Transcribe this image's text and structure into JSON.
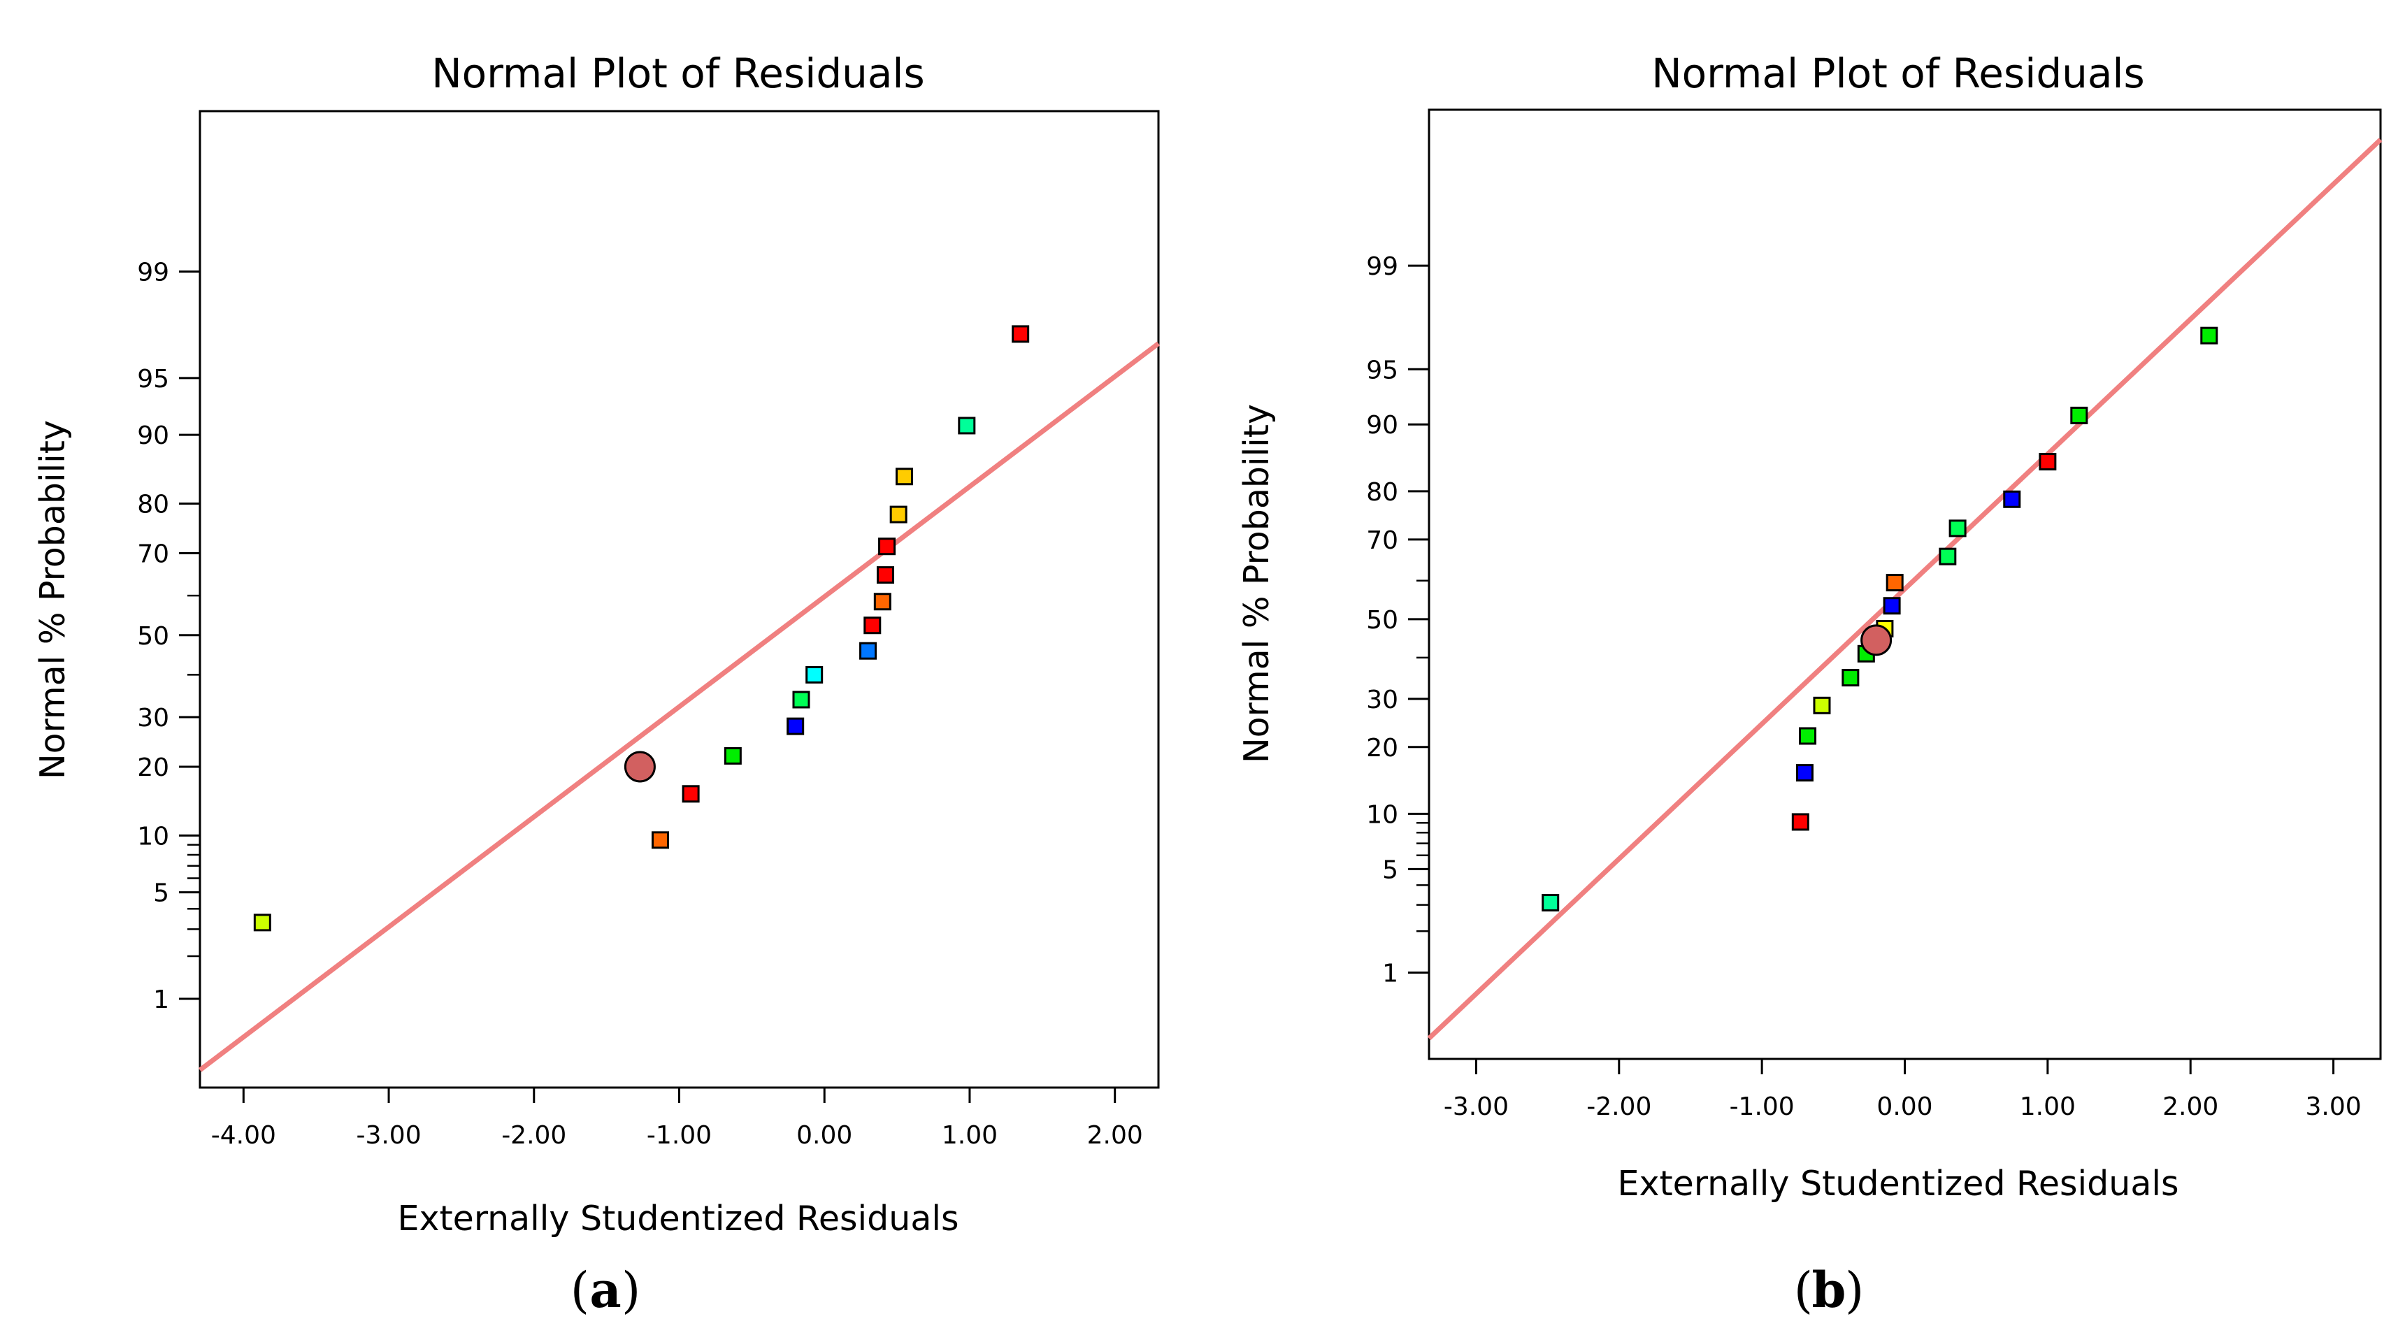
{
  "chart_data": [
    {
      "id": "a",
      "type": "scatter",
      "title": "Normal Plot of Residuals",
      "xlabel": "Externally Studentized Residuals",
      "ylabel": "Normal % Probability",
      "caption_letter": "a",
      "xlim": [
        -4.3,
        2.3
      ],
      "ylim_percent": [
        0.19,
        99.96
      ],
      "x_ticks": [
        "-4.00",
        "-3.00",
        "-2.00",
        "-1.00",
        "0.00",
        "1.00",
        "2.00"
      ],
      "y_ticks": [
        "1",
        "5",
        "10",
        "20",
        "30",
        "50",
        "70",
        "80",
        "90",
        "95",
        "99"
      ],
      "reference_line": {
        "x": [
          -4.3,
          2.3
        ],
        "percent": [
          0.27,
          96.9
        ],
        "color": "#f08080"
      },
      "highlight_point": {
        "x": -1.27,
        "percent": 20.0,
        "color": "#d26060"
      },
      "points": [
        {
          "x": -3.87,
          "percent": 3.3,
          "color": "#ccff00"
        },
        {
          "x": -1.13,
          "percent": 9.5,
          "color": "#ff6600"
        },
        {
          "x": -0.92,
          "percent": 15.5,
          "color": "#ff0000"
        },
        {
          "x": -0.63,
          "percent": 22.0,
          "color": "#00ee00"
        },
        {
          "x": -0.2,
          "percent": 28.0,
          "color": "#0000ff"
        },
        {
          "x": -0.16,
          "percent": 34.0,
          "color": "#00ff55"
        },
        {
          "x": -0.07,
          "percent": 40.0,
          "color": "#00ffff"
        },
        {
          "x": 0.3,
          "percent": 46.0,
          "color": "#0077ff"
        },
        {
          "x": 0.33,
          "percent": 52.5,
          "color": "#ff0000"
        },
        {
          "x": 0.4,
          "percent": 58.5,
          "color": "#ff6600"
        },
        {
          "x": 0.42,
          "percent": 65.0,
          "color": "#ff0000"
        },
        {
          "x": 0.43,
          "percent": 71.5,
          "color": "#ff0000"
        },
        {
          "x": 0.51,
          "percent": 78.0,
          "color": "#ffcc00"
        },
        {
          "x": 0.55,
          "percent": 84.5,
          "color": "#ffcc00"
        },
        {
          "x": 0.98,
          "percent": 91.0,
          "color": "#00ff99"
        },
        {
          "x": 1.35,
          "percent": 97.3,
          "color": "#ff0000"
        }
      ]
    },
    {
      "id": "b",
      "type": "scatter",
      "title": "Normal Plot of Residuals",
      "xlabel": "Externally Studentized Residuals",
      "ylabel": "Normal % Probability",
      "caption_letter": "b",
      "xlim": [
        -3.33,
        3.33
      ],
      "ylim_percent": [
        0.19,
        99.96
      ],
      "x_ticks": [
        "-3.00",
        "-2.00",
        "-1.00",
        "0.00",
        "1.00",
        "2.00",
        "3.00"
      ],
      "y_ticks": [
        "1",
        "5",
        "10",
        "20",
        "30",
        "50",
        "70",
        "80",
        "90",
        "95",
        "99"
      ],
      "reference_line": {
        "x": [
          -3.33,
          3.33
        ],
        "percent": [
          0.29,
          99.92
        ],
        "color": "#f08080"
      },
      "highlight_point": {
        "x": -0.2,
        "percent": 44.5,
        "color": "#d26060"
      },
      "points": [
        {
          "x": -2.48,
          "percent": 3.1,
          "color": "#00ff99"
        },
        {
          "x": -0.73,
          "percent": 9.1,
          "color": "#ff0000"
        },
        {
          "x": -0.7,
          "percent": 15.6,
          "color": "#0000ff"
        },
        {
          "x": -0.68,
          "percent": 22.1,
          "color": "#00ee00"
        },
        {
          "x": -0.58,
          "percent": 28.5,
          "color": "#ccff00"
        },
        {
          "x": -0.38,
          "percent": 35.0,
          "color": "#00ee00"
        },
        {
          "x": -0.27,
          "percent": 41.0,
          "color": "#00ee00"
        },
        {
          "x": -0.14,
          "percent": 47.5,
          "color": "#ffff00"
        },
        {
          "x": -0.09,
          "percent": 53.5,
          "color": "#0000ff"
        },
        {
          "x": -0.07,
          "percent": 59.5,
          "color": "#ff6600"
        },
        {
          "x": 0.3,
          "percent": 66.0,
          "color": "#00ff55"
        },
        {
          "x": 0.37,
          "percent": 72.5,
          "color": "#00ff55"
        },
        {
          "x": 0.75,
          "percent": 78.5,
          "color": "#0000ff"
        },
        {
          "x": 1.0,
          "percent": 85.0,
          "color": "#ff0000"
        },
        {
          "x": 1.22,
          "percent": 91.0,
          "color": "#00ee00"
        },
        {
          "x": 2.13,
          "percent": 96.9,
          "color": "#00ee00"
        }
      ]
    }
  ]
}
